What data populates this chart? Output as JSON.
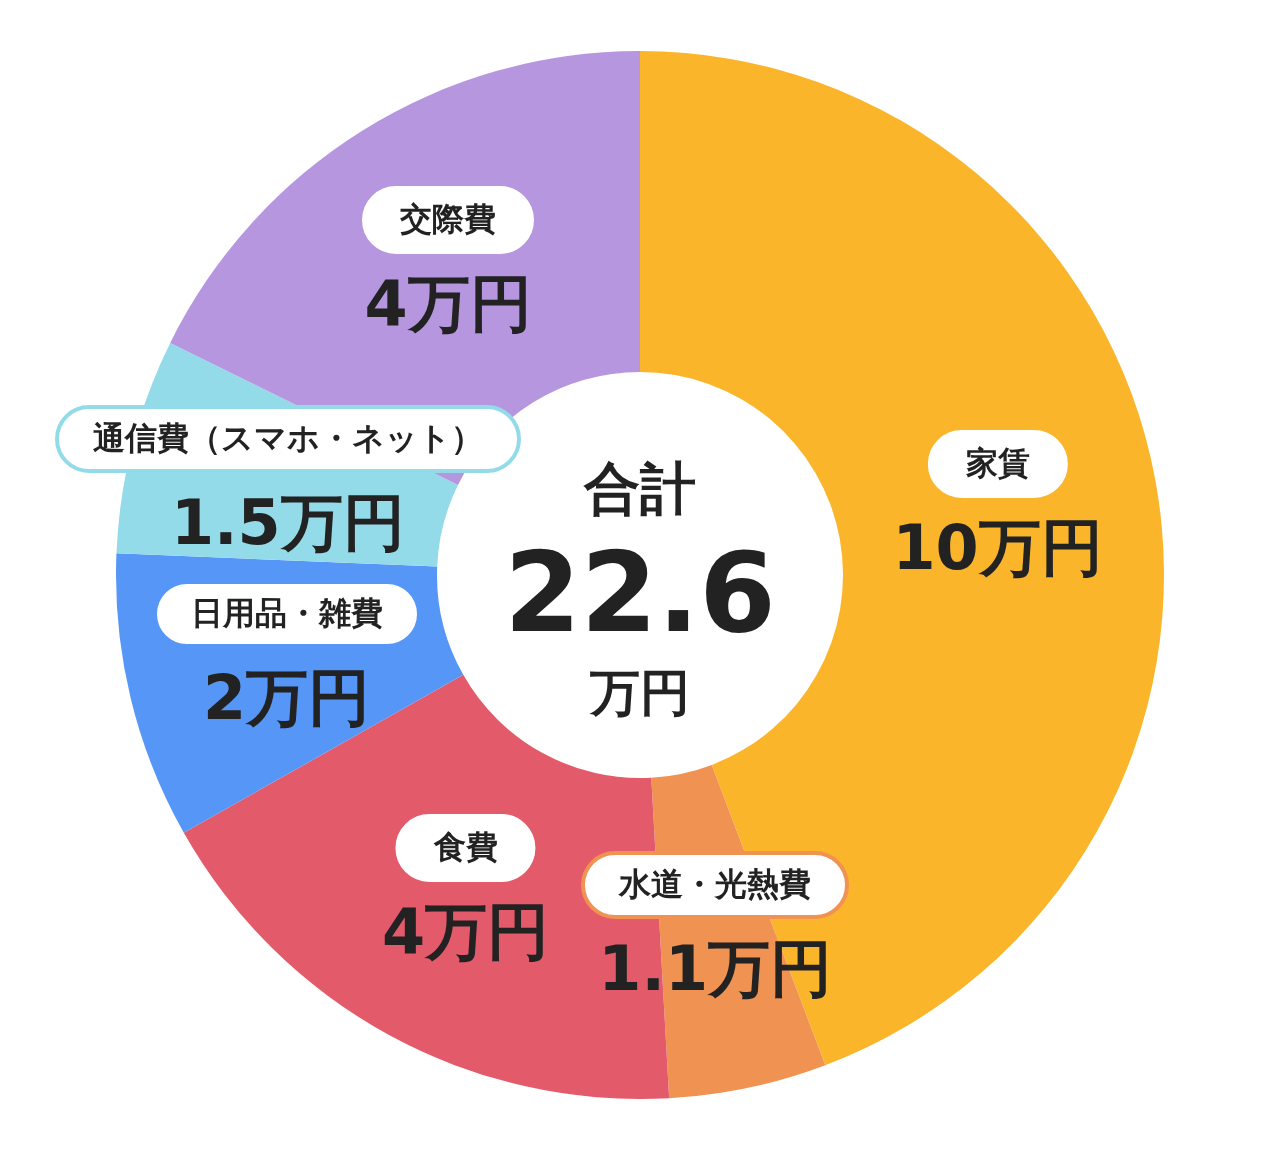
{
  "chart_data": {
    "type": "donut",
    "categories": [
      "家賃",
      "水道・光熱費",
      "食費",
      "日用品・雑費",
      "通信費（スマホ・ネット）",
      "交際費"
    ],
    "values": [
      10,
      1.1,
      4,
      2,
      1.5,
      4
    ],
    "colors": [
      "#fbb52a",
      "#f09252",
      "#e35a6a",
      "#5596f7",
      "#94dbea",
      "#b596df"
    ],
    "value_labels": [
      "10万円",
      "1.1万円",
      "4万円",
      "2万円",
      "1.5万円",
      "4万円"
    ],
    "annotations": [
      "合計",
      "22.6",
      "万円"
    ]
  }
}
